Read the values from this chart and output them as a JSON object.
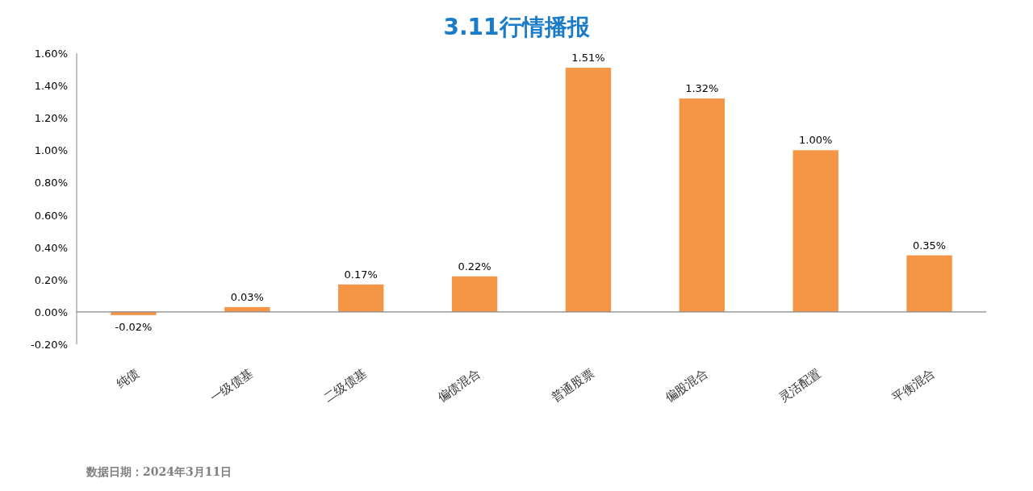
{
  "chart_data": {
    "type": "bar",
    "title": "3.11行情播报",
    "categories": [
      "纯债",
      "一级债基",
      "二级债基",
      "偏债混合",
      "普通股票",
      "偏股混合",
      "灵活配置",
      "平衡混合"
    ],
    "values": [
      -0.02,
      0.03,
      0.17,
      0.22,
      1.51,
      1.32,
      1.0,
      0.35
    ],
    "value_labels": [
      "-0.02%",
      "0.03%",
      "0.17%",
      "0.22%",
      "1.51%",
      "1.32%",
      "1.00%",
      "0.35%"
    ],
    "color": "#f59647",
    "ylim": [
      -0.2,
      1.6
    ],
    "yticks": [
      {
        "value": -0.2,
        "label": "-0.20%"
      },
      {
        "value": 0,
        "label": "0.00%"
      },
      {
        "value": 0.2,
        "label": "0.20%"
      },
      {
        "value": 0.4,
        "label": "0.40%"
      },
      {
        "value": 0.6,
        "label": "0.60%"
      },
      {
        "value": 0.8,
        "label": "0.80%"
      },
      {
        "value": 1.0,
        "label": "1.00%"
      },
      {
        "value": 1.2,
        "label": "1.20%"
      },
      {
        "value": 1.4,
        "label": "1.40%"
      },
      {
        "value": 1.6,
        "label": "1.60%"
      }
    ],
    "annotations": [
      "数据日期：2024年3月11日"
    ]
  }
}
